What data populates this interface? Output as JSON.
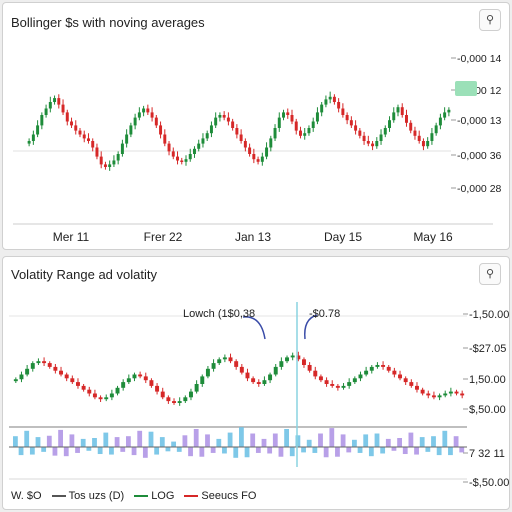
{
  "panels": {
    "top": {
      "title": "Bollinger $s with noving averages",
      "icon": "search-icon"
    },
    "bottom": {
      "title": "Volatity Range ad volatity",
      "icon": "search-icon"
    }
  },
  "legend": [
    {
      "label": "W. $O",
      "color": ""
    },
    {
      "label": "Tos uzs (D)",
      "color": "#555555"
    },
    {
      "label": "LOG",
      "color": "#1e8c3a"
    },
    {
      "label": "Seeucs FO",
      "color": "#d62828"
    }
  ],
  "colors": {
    "up": "#1e8c3a",
    "down": "#d62828",
    "volume_blue": "#7ec8e8",
    "volume_purple": "#b8a0e8",
    "marker": "#8ad4e0",
    "highlight": "#9be0b8"
  },
  "chart_data": [
    {
      "type": "candlestick",
      "title": "Bollinger $s with noving averages",
      "x_tick_labels": [
        "Mer 11",
        "Frer 22",
        "Jan 13",
        "Day 15",
        "May 16"
      ],
      "y_tick_labels": [
        "-0,000 14",
        "-0,000 12",
        "-0,000 13",
        "-0,000 36",
        "-0,000 28"
      ],
      "ylim": [
        0,
        100
      ],
      "current_value_label": "-0,000 12",
      "closes": [
        40,
        45,
        52,
        60,
        65,
        70,
        73,
        68,
        62,
        55,
        52,
        48,
        45,
        42,
        40,
        35,
        28,
        22,
        20,
        22,
        25,
        30,
        38,
        45,
        52,
        58,
        62,
        65,
        62,
        58,
        52,
        45,
        38,
        32,
        28,
        25,
        24,
        26,
        30,
        34,
        38,
        42,
        46,
        52,
        58,
        60,
        58,
        55,
        50,
        45,
        40,
        35,
        30,
        26,
        24,
        28,
        35,
        42,
        50,
        58,
        62,
        60,
        55,
        48,
        44,
        46,
        50,
        55,
        62,
        68,
        72,
        74,
        70,
        65,
        60,
        56,
        52,
        48,
        44,
        40,
        38,
        36,
        40,
        45,
        50,
        56,
        62,
        66,
        60,
        54,
        48,
        44,
        40,
        36,
        40,
        46,
        52,
        58,
        62,
        64
      ]
    },
    {
      "type": "candlestick",
      "title": "Volatity Range ad volatity",
      "y_tick_labels": [
        "-1,50.00",
        "-$27.05",
        "1,50.00",
        "$,50.00",
        "7 32 11",
        "-$,50.00"
      ],
      "ylim": [
        0,
        100
      ],
      "annotations": [
        "Lowch (1$0,38",
        "-$0.78"
      ],
      "closes": [
        45,
        50,
        56,
        62,
        64,
        62,
        58,
        54,
        50,
        46,
        42,
        38,
        34,
        30,
        26,
        24,
        26,
        30,
        36,
        42,
        46,
        50,
        48,
        44,
        38,
        32,
        26,
        22,
        20,
        22,
        26,
        32,
        40,
        48,
        56,
        62,
        66,
        68,
        64,
        58,
        52,
        46,
        42,
        40,
        44,
        50,
        58,
        64,
        68,
        70,
        66,
        60,
        54,
        48,
        44,
        40,
        38,
        36,
        38,
        42,
        46,
        50,
        54,
        58,
        60,
        58,
        54,
        50,
        46,
        42,
        38,
        34,
        30,
        28,
        26,
        28,
        30,
        32,
        30,
        28
      ],
      "volume": [
        24,
        30,
        36,
        28,
        22,
        18,
        25,
        32,
        38,
        34,
        28,
        22,
        18,
        14,
        20,
        26,
        32,
        28,
        22,
        18,
        24,
        30,
        36,
        40,
        34,
        28,
        22,
        16,
        12,
        18,
        26,
        34,
        40,
        36,
        28,
        22,
        18,
        24,
        32,
        40,
        44,
        38,
        30,
        22,
        18,
        24,
        30,
        36,
        40,
        34,
        26,
        20,
        16,
        22,
        30,
        38,
        42,
        36,
        28,
        20,
        16,
        22,
        28,
        34,
        30,
        24,
        18,
        14,
        20,
        26,
        32,
        28,
        22,
        18,
        24,
        30,
        36,
        30,
        24,
        20
      ]
    }
  ]
}
